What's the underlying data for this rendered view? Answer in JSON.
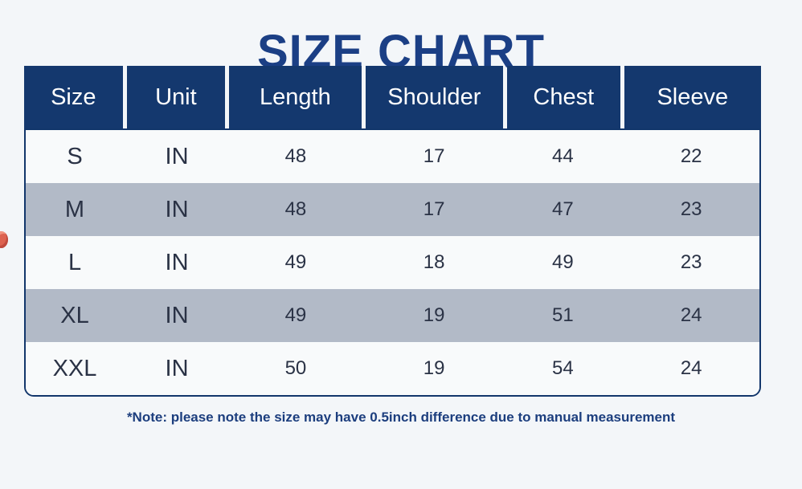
{
  "title": "SIZE CHART",
  "table": {
    "headers": [
      "Size",
      "Unit",
      "Length",
      "Shoulder",
      "Chest",
      "Sleeve"
    ],
    "rows": [
      [
        "S",
        "IN",
        "48",
        "17",
        "44",
        "22"
      ],
      [
        "M",
        "IN",
        "48",
        "17",
        "47",
        "23"
      ],
      [
        "L",
        "IN",
        "49",
        "18",
        "49",
        "23"
      ],
      [
        "XL",
        "IN",
        "49",
        "19",
        "51",
        "24"
      ],
      [
        "XXL",
        "IN",
        "50",
        "19",
        "54",
        "24"
      ]
    ]
  },
  "note": "*Note: please note the size may have 0.5inch difference due to manual measurement",
  "colors": {
    "page_bg": "#f3f6f9",
    "title": "#1b3f85",
    "header_bg": "#14386e",
    "header_text": "#ffffff",
    "row_light": "#f8fafb",
    "row_dark": "#b2bac7",
    "body_text": "#2a3245",
    "border": "#12366b",
    "note_text": "#1c3e7e",
    "edge_blob": "#dd6250"
  }
}
